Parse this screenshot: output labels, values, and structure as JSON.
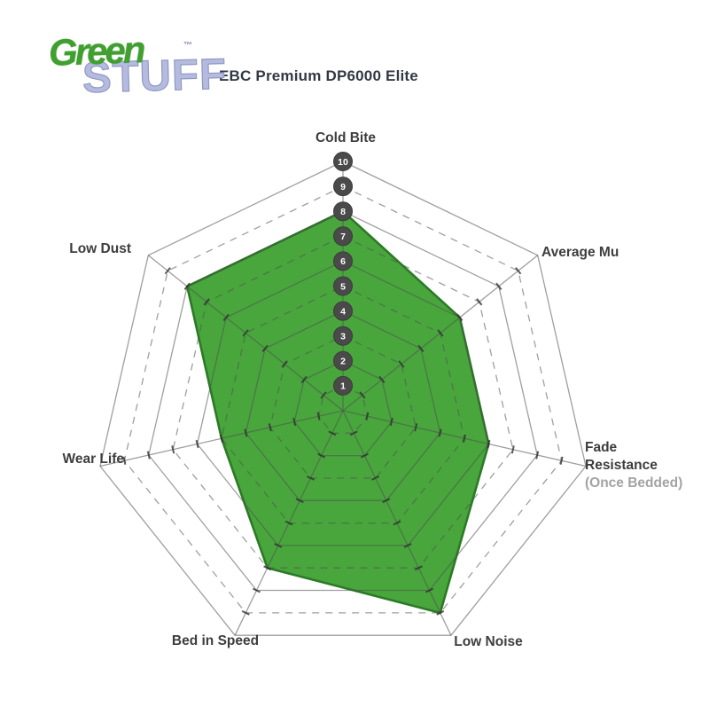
{
  "logo": {
    "green_text": "Green",
    "stuff_text": "STUFF",
    "trademark": "™",
    "green_color": "#3fa02f",
    "stuff_color": "#b5bbdf"
  },
  "header": {
    "title": "EBC Premium DP6000 Elite"
  },
  "chart_data": {
    "type": "radar",
    "title": "EBC Premium DP6000 Elite",
    "categories": [
      "Cold Bite",
      "Average Mu",
      "Fade Resistance (Once Bedded)",
      "Low Noise",
      "Bed in Speed",
      "Wear Life",
      "Low Dust"
    ],
    "series": [
      {
        "name": "EBC Premium DP6000 Elite",
        "values": [
          8,
          6,
          6,
          9,
          7,
          5,
          8
        ]
      }
    ],
    "scale": {
      "min": 0,
      "max": 10,
      "step": 1,
      "tick_labels": [
        "1",
        "2",
        "3",
        "4",
        "5",
        "6",
        "7",
        "8",
        "9",
        "10"
      ]
    },
    "grid": {
      "rings": 10,
      "even_rings": "solid",
      "odd_rings": "dashed",
      "spokes": 7
    },
    "axis_display": [
      {
        "text": "Cold Bite"
      },
      {
        "text": "Average Mu"
      },
      {
        "line1": "Fade",
        "line2": "Resistance",
        "sub": "(Once Bedded)"
      },
      {
        "text": "Low Noise"
      },
      {
        "text": "Bed in Speed"
      },
      {
        "text": "Wear Life"
      },
      {
        "text": "Low Dust"
      }
    ],
    "colors": {
      "fill": "#48a63c",
      "stroke": "#2c7a26",
      "grid": "rgba(80,80,80,0.55)",
      "tick": "rgba(50,50,50,0.8)",
      "badge_fill": "#4a4a4a",
      "badge_text": "#ffffff",
      "label": "#3d3d3d",
      "sublabel": "#a3a3a3"
    }
  }
}
